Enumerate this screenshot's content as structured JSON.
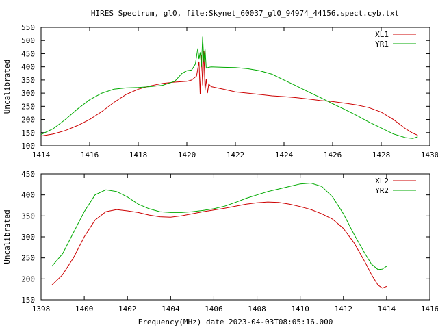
{
  "chart_data": [
    {
      "type": "line",
      "title": "HIRES Spectrum, gl0, file:Skynet_60037_gl0_94974_44156.spect.cyb.txt",
      "xlabel": "",
      "ylabel": "Uncalibrated",
      "xlim": [
        1414,
        1430
      ],
      "ylim": [
        100,
        550
      ],
      "xticks": [
        1414,
        1416,
        1418,
        1420,
        1422,
        1424,
        1426,
        1428,
        1430
      ],
      "yticks": [
        100,
        150,
        200,
        250,
        300,
        350,
        400,
        450,
        500,
        550
      ],
      "grid": false,
      "legend_position": "top-right",
      "series": [
        {
          "name": "XL1",
          "color": "#cc0000",
          "points": [
            [
              1414.0,
              137
            ],
            [
              1414.5,
              145
            ],
            [
              1415.0,
              158
            ],
            [
              1415.5,
              177
            ],
            [
              1416.0,
              200
            ],
            [
              1416.5,
              230
            ],
            [
              1417.0,
              265
            ],
            [
              1417.5,
              295
            ],
            [
              1418.0,
              315
            ],
            [
              1418.5,
              328
            ],
            [
              1419.0,
              337
            ],
            [
              1419.5,
              342
            ],
            [
              1420.0,
              345
            ],
            [
              1420.2,
              350
            ],
            [
              1420.4,
              365
            ],
            [
              1420.5,
              420
            ],
            [
              1420.55,
              295
            ],
            [
              1420.6,
              445
            ],
            [
              1420.65,
              330
            ],
            [
              1420.7,
              460
            ],
            [
              1420.75,
              310
            ],
            [
              1420.8,
              355
            ],
            [
              1420.85,
              300
            ],
            [
              1420.9,
              335
            ],
            [
              1421.0,
              325
            ],
            [
              1421.5,
              315
            ],
            [
              1422.0,
              305
            ],
            [
              1422.5,
              300
            ],
            [
              1423.0,
              295
            ],
            [
              1423.5,
              290
            ],
            [
              1424.0,
              287
            ],
            [
              1424.5,
              283
            ],
            [
              1425.0,
              278
            ],
            [
              1425.5,
              272
            ],
            [
              1426.0,
              268
            ],
            [
              1426.5,
              262
            ],
            [
              1427.0,
              255
            ],
            [
              1427.5,
              245
            ],
            [
              1428.0,
              228
            ],
            [
              1428.5,
              200
            ],
            [
              1429.0,
              165
            ],
            [
              1429.3,
              148
            ],
            [
              1429.5,
              140
            ]
          ]
        },
        {
          "name": "YR1",
          "color": "#00aa00",
          "points": [
            [
              1414.0,
              143
            ],
            [
              1414.5,
              165
            ],
            [
              1415.0,
              200
            ],
            [
              1415.5,
              240
            ],
            [
              1416.0,
              275
            ],
            [
              1416.5,
              300
            ],
            [
              1417.0,
              315
            ],
            [
              1417.5,
              320
            ],
            [
              1418.0,
              322
            ],
            [
              1418.5,
              325
            ],
            [
              1419.0,
              330
            ],
            [
              1419.5,
              345
            ],
            [
              1419.8,
              375
            ],
            [
              1420.0,
              385
            ],
            [
              1420.2,
              388
            ],
            [
              1420.35,
              410
            ],
            [
              1420.45,
              470
            ],
            [
              1420.5,
              430
            ],
            [
              1420.55,
              455
            ],
            [
              1420.6,
              400
            ],
            [
              1420.65,
              515
            ],
            [
              1420.7,
              420
            ],
            [
              1420.75,
              470
            ],
            [
              1420.8,
              395
            ],
            [
              1420.9,
              398
            ],
            [
              1421.0,
              400
            ],
            [
              1421.5,
              398
            ],
            [
              1422.0,
              397
            ],
            [
              1422.5,
              393
            ],
            [
              1423.0,
              385
            ],
            [
              1423.5,
              372
            ],
            [
              1424.0,
              350
            ],
            [
              1424.5,
              328
            ],
            [
              1425.0,
              305
            ],
            [
              1425.5,
              283
            ],
            [
              1426.0,
              260
            ],
            [
              1426.5,
              238
            ],
            [
              1427.0,
              215
            ],
            [
              1427.5,
              190
            ],
            [
              1428.0,
              168
            ],
            [
              1428.5,
              145
            ],
            [
              1429.0,
              131
            ],
            [
              1429.3,
              128
            ],
            [
              1429.5,
              134
            ]
          ]
        }
      ]
    },
    {
      "type": "line",
      "title": "",
      "xlabel": "Frequency(MHz) date 2023-04-03T08:05:16.000",
      "ylabel": "Uncalibrated",
      "xlim": [
        1398,
        1416
      ],
      "ylim": [
        150,
        450
      ],
      "xticks": [
        1398,
        1400,
        1402,
        1404,
        1406,
        1408,
        1410,
        1412,
        1414,
        1416
      ],
      "yticks": [
        150,
        200,
        250,
        300,
        350,
        400,
        450
      ],
      "grid": false,
      "legend_position": "top-right",
      "series": [
        {
          "name": "XL2",
          "color": "#cc0000",
          "points": [
            [
              1398.5,
              185
            ],
            [
              1399.0,
              210
            ],
            [
              1399.5,
              250
            ],
            [
              1400.0,
              300
            ],
            [
              1400.5,
              340
            ],
            [
              1401.0,
              360
            ],
            [
              1401.5,
              365
            ],
            [
              1402.0,
              362
            ],
            [
              1402.5,
              358
            ],
            [
              1403.0,
              352
            ],
            [
              1403.5,
              348
            ],
            [
              1404.0,
              347
            ],
            [
              1404.5,
              350
            ],
            [
              1405.0,
              355
            ],
            [
              1405.5,
              360
            ],
            [
              1406.0,
              364
            ],
            [
              1406.5,
              368
            ],
            [
              1407.0,
              373
            ],
            [
              1407.5,
              378
            ],
            [
              1408.0,
              381
            ],
            [
              1408.5,
              383
            ],
            [
              1409.0,
              382
            ],
            [
              1409.5,
              378
            ],
            [
              1410.0,
              372
            ],
            [
              1410.5,
              365
            ],
            [
              1411.0,
              355
            ],
            [
              1411.5,
              342
            ],
            [
              1412.0,
              320
            ],
            [
              1412.5,
              285
            ],
            [
              1413.0,
              240
            ],
            [
              1413.3,
              210
            ],
            [
              1413.6,
              185
            ],
            [
              1413.8,
              178
            ],
            [
              1414.0,
              182
            ]
          ]
        },
        {
          "name": "YR2",
          "color": "#00aa00",
          "points": [
            [
              1398.5,
              230
            ],
            [
              1399.0,
              260
            ],
            [
              1399.5,
              310
            ],
            [
              1400.0,
              360
            ],
            [
              1400.5,
              400
            ],
            [
              1401.0,
              412
            ],
            [
              1401.5,
              408
            ],
            [
              1402.0,
              395
            ],
            [
              1402.5,
              378
            ],
            [
              1403.0,
              367
            ],
            [
              1403.5,
              360
            ],
            [
              1404.0,
              358
            ],
            [
              1404.5,
              358
            ],
            [
              1405.0,
              360
            ],
            [
              1405.5,
              363
            ],
            [
              1406.0,
              367
            ],
            [
              1406.5,
              373
            ],
            [
              1407.0,
              382
            ],
            [
              1407.5,
              392
            ],
            [
              1408.0,
              400
            ],
            [
              1408.5,
              408
            ],
            [
              1409.0,
              414
            ],
            [
              1409.5,
              420
            ],
            [
              1410.0,
              426
            ],
            [
              1410.5,
              428
            ],
            [
              1411.0,
              420
            ],
            [
              1411.5,
              395
            ],
            [
              1412.0,
              355
            ],
            [
              1412.5,
              305
            ],
            [
              1413.0,
              260
            ],
            [
              1413.3,
              235
            ],
            [
              1413.6,
              222
            ],
            [
              1413.8,
              223
            ],
            [
              1414.0,
              230
            ]
          ]
        }
      ]
    }
  ]
}
